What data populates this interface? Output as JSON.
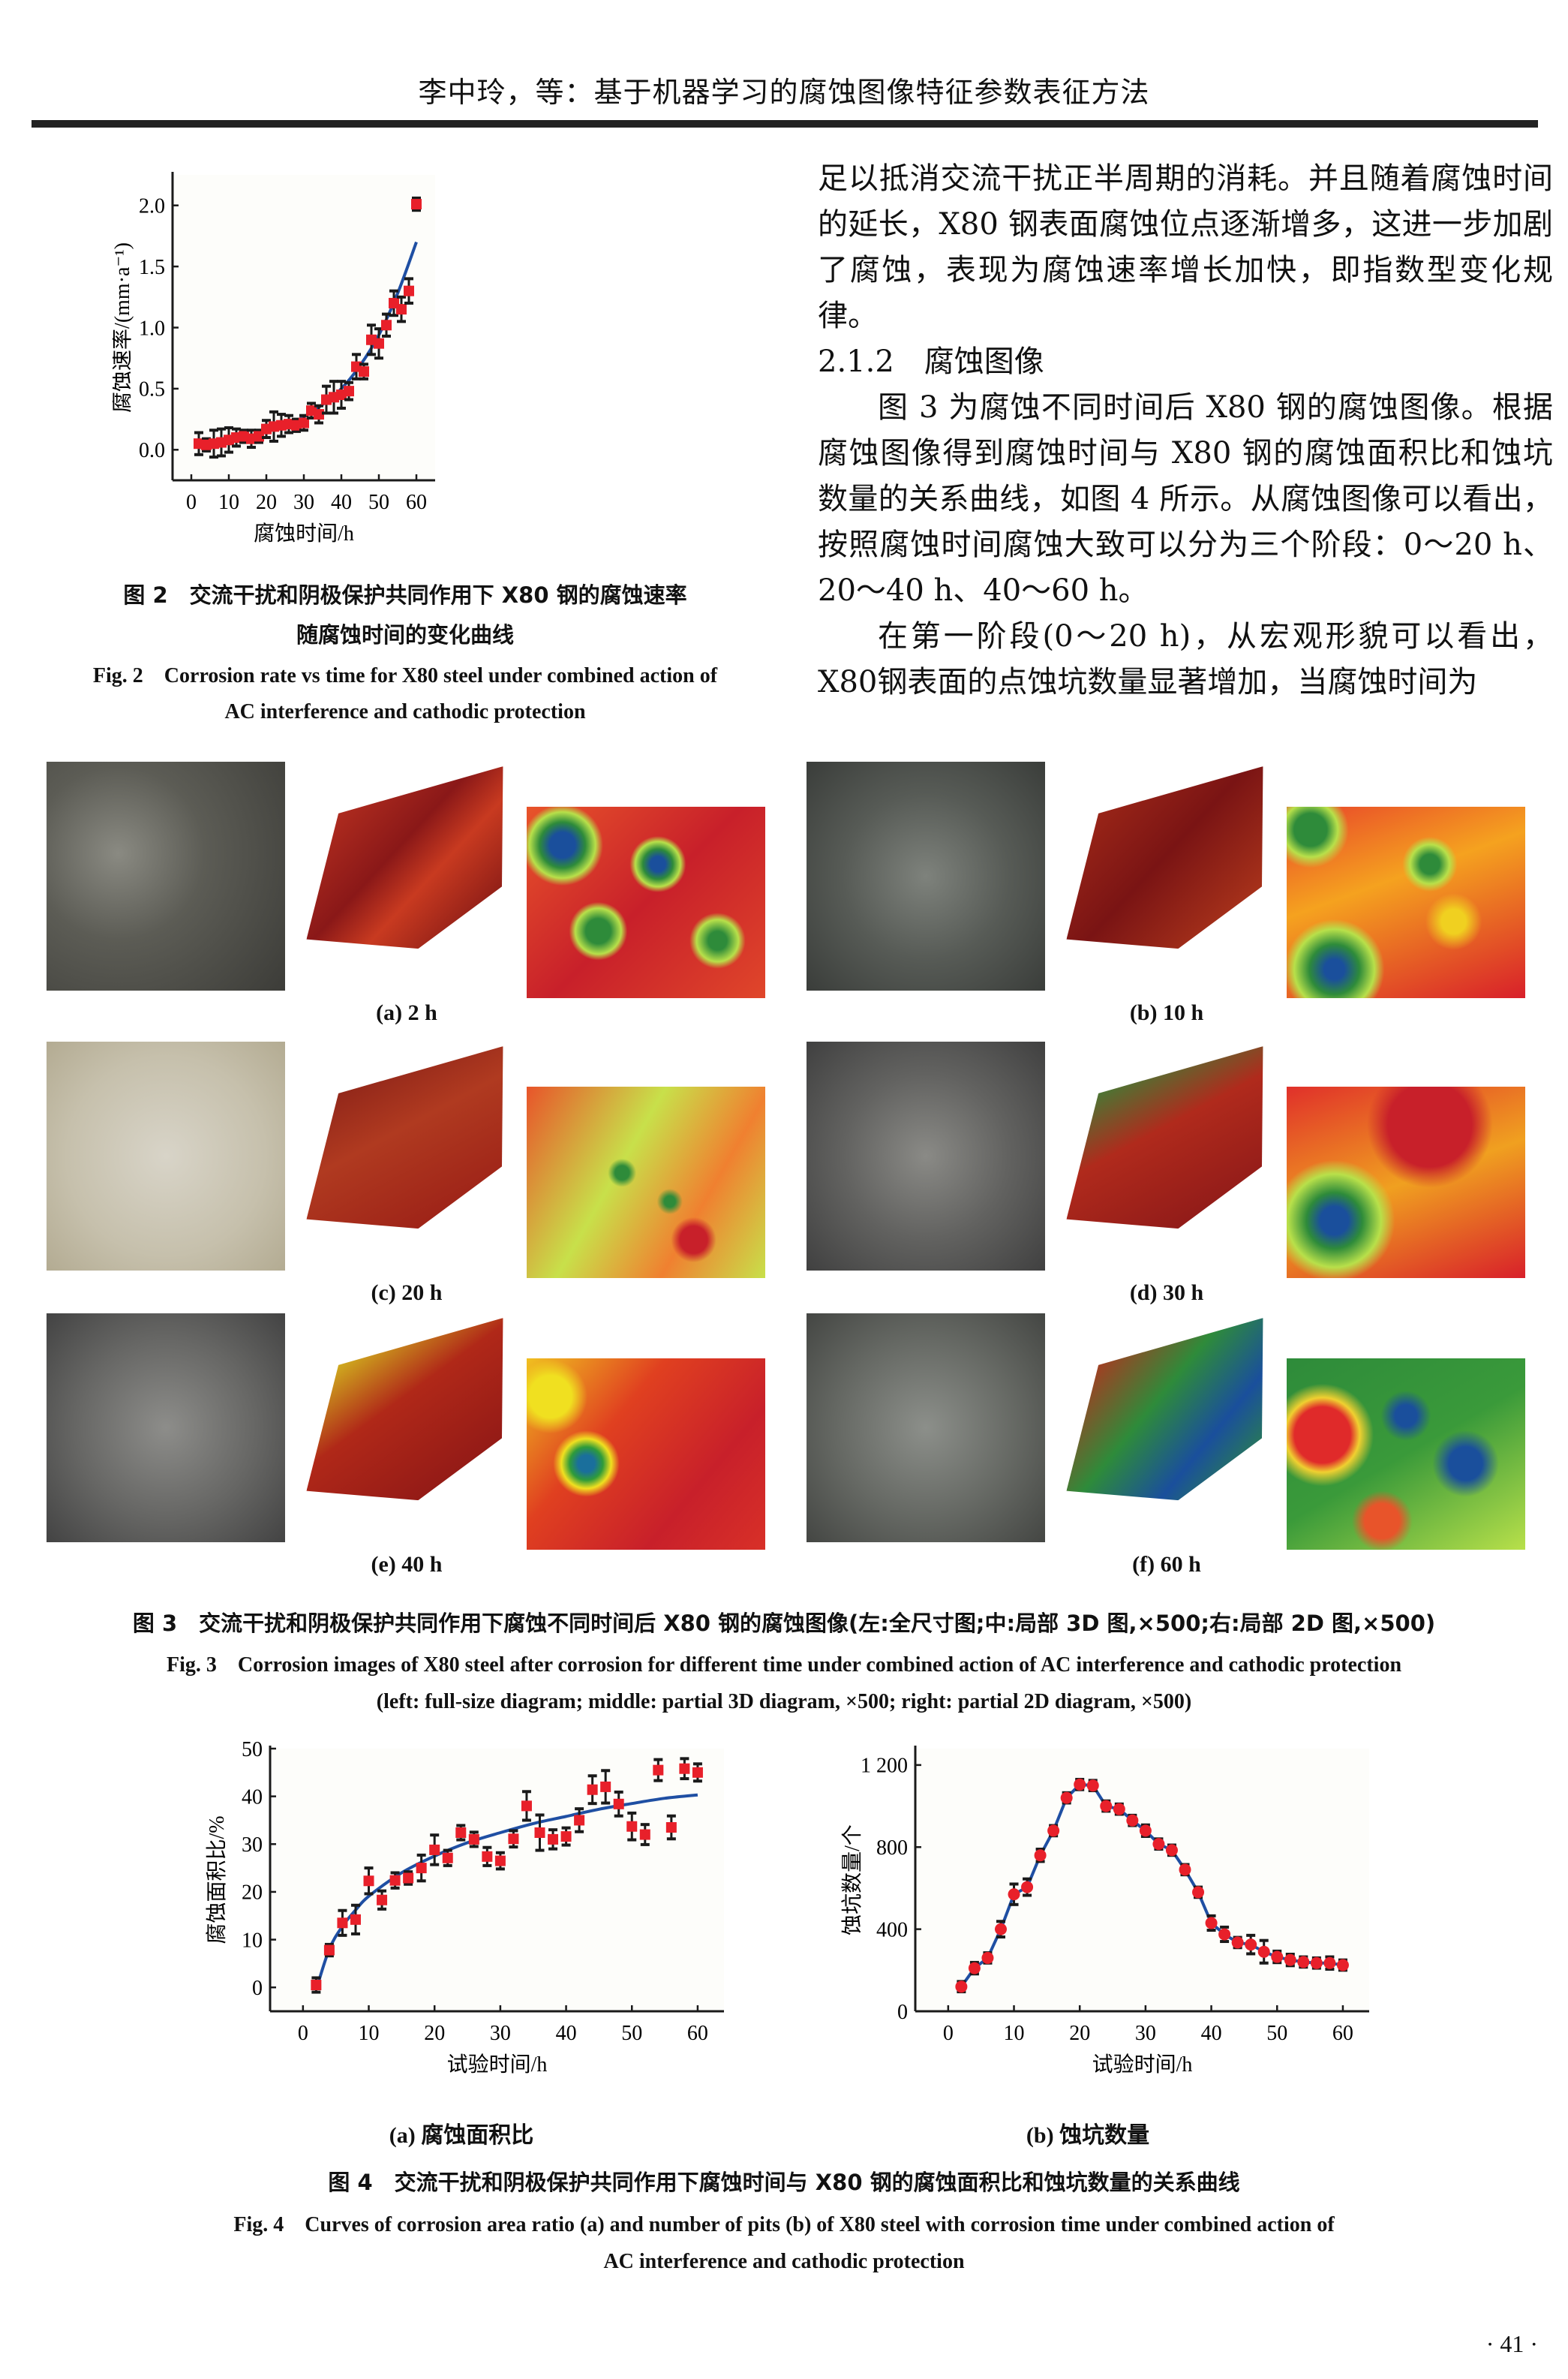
{
  "header": {
    "running_title": "李中玲，等：基于机器学习的腐蚀图像特征参数表征方法"
  },
  "body_text": {
    "paragraph1": "足以抵消交流干扰正半周期的消耗。并且随着腐蚀时间的延长，X80 钢表面腐蚀位点逐渐增多，这进一步加剧了腐蚀，表现为腐蚀速率增长加快，即指数型变化规律。",
    "section_heading": "2.1.2　腐蚀图像",
    "paragraph2": "图 3 为腐蚀不同时间后 X80 钢的腐蚀图像。根据腐蚀图像得到腐蚀时间与 X80 钢的腐蚀面积比和蚀坑数量的关系曲线，如图 4 所示。从腐蚀图像可以看出，按照腐蚀时间腐蚀大致可以分为三个阶段：0～20 h、20～40 h、40～60 h。",
    "paragraph3": "在第一阶段(0～20 h)，从宏观形貌可以看出，X80钢表面的点蚀坑数量显著增加，当腐蚀时间为"
  },
  "fig2": {
    "caption_cn_line1": "图 2　交流干扰和阴极保护共同作用下 X80 钢的腐蚀速率",
    "caption_cn_line2": "随腐蚀时间的变化曲线",
    "caption_en_line1": "Fig. 2　Corrosion rate vs time for X80 steel under combined action of",
    "caption_en_line2": "AC interference and cathodic protection"
  },
  "fig3": {
    "panels": [
      {
        "label": "(a) 2 h"
      },
      {
        "label": "(b) 10 h"
      },
      {
        "label": "(c) 20 h"
      },
      {
        "label": "(d) 30 h"
      },
      {
        "label": "(e) 40 h"
      },
      {
        "label": "(f) 60 h"
      }
    ],
    "caption_cn": "图 3　交流干扰和阴极保护共同作用下腐蚀不同时间后 X80 钢的腐蚀图像(左:全尺寸图;中:局部 3D 图,×500;右:局部 2D 图,×500)",
    "caption_en_line1": "Fig. 3　Corrosion images of X80 steel after corrosion for different time under combined action of AC interference and cathodic protection",
    "caption_en_line2": "(left: full-size diagram; middle: partial 3D diagram, ×500; right: partial 2D diagram, ×500)"
  },
  "fig4": {
    "caption_cn": "图 4　交流干扰和阴极保护共同作用下腐蚀时间与 X80 钢的腐蚀面积比和蚀坑数量的关系曲线",
    "caption_en_line1": "Fig. 4　Curves of corrosion area ratio (a) and number of pits (b) of X80 steel with corrosion time under combined action of",
    "caption_en_line2": "AC interference and cathodic protection",
    "sub_a": "(a) 腐蚀面积比",
    "sub_b": "(b) 蚀坑数量"
  },
  "page_number": "· 41 ·",
  "colors": {
    "marker": "#e8202a",
    "errorbar": "#1a1a1a",
    "fit": "#1f4fa3",
    "axis": "#1a1a1a"
  },
  "chart_data": [
    {
      "id": "fig2",
      "type": "scatter",
      "title": "",
      "xlabel": "腐蚀时间/h",
      "ylabel": "腐蚀速率/(mm·a⁻¹)",
      "xlim": [
        -5,
        65
      ],
      "ylim": [
        -0.25,
        2.25
      ],
      "xticks": [
        0,
        10,
        20,
        30,
        40,
        50,
        60
      ],
      "yticks": [
        0.0,
        0.5,
        1.0,
        1.5,
        2.0
      ],
      "ytick_labels": [
        "0.0",
        "0.5",
        "1.0",
        "1.5",
        "2.0"
      ],
      "grid": false,
      "series": [
        {
          "name": "measured",
          "marker": "square",
          "x": [
            2,
            4,
            6,
            8,
            10,
            12,
            14,
            16,
            18,
            20,
            22,
            24,
            26,
            28,
            30,
            32,
            34,
            36,
            38,
            40,
            42,
            44,
            46,
            48,
            50,
            52,
            54,
            56,
            58,
            60
          ],
          "y": [
            0.05,
            0.04,
            0.05,
            0.06,
            0.08,
            0.1,
            0.11,
            0.09,
            0.11,
            0.17,
            0.19,
            0.2,
            0.21,
            0.2,
            0.22,
            0.32,
            0.29,
            0.41,
            0.43,
            0.45,
            0.48,
            0.68,
            0.64,
            0.9,
            0.87,
            1.02,
            1.2,
            1.15,
            1.3,
            2.01
          ],
          "err": [
            0.09,
            0.05,
            0.11,
            0.11,
            0.1,
            0.07,
            0.05,
            0.07,
            0.05,
            0.07,
            0.12,
            0.09,
            0.07,
            0.05,
            0.06,
            0.06,
            0.07,
            0.11,
            0.13,
            0.11,
            0.07,
            0.1,
            0.06,
            0.12,
            0.12,
            0.09,
            0.1,
            0.1,
            0.1,
            0.05
          ]
        },
        {
          "name": "exponential fit",
          "type": "line",
          "curve": "exponential",
          "x": [
            2,
            5,
            10,
            15,
            20,
            25,
            30,
            35,
            40,
            45,
            50,
            55,
            60
          ],
          "y": [
            0.05,
            0.06,
            0.08,
            0.11,
            0.15,
            0.2,
            0.27,
            0.37,
            0.5,
            0.69,
            0.94,
            1.28,
            1.7
          ]
        }
      ]
    },
    {
      "id": "fig4a",
      "type": "scatter",
      "title": "(a) 腐蚀面积比",
      "xlabel": "试验时间/h",
      "ylabel": "腐蚀面积比/%",
      "xlim": [
        -5,
        64
      ],
      "ylim": [
        -5,
        50
      ],
      "xticks": [
        0,
        10,
        20,
        30,
        40,
        50,
        60
      ],
      "yticks": [
        0,
        10,
        20,
        30,
        40,
        50
      ],
      "grid": false,
      "series": [
        {
          "name": "measured",
          "marker": "square",
          "x": [
            2,
            4,
            6,
            8,
            10,
            12,
            14,
            16,
            18,
            20,
            22,
            24,
            26,
            28,
            30,
            32,
            34,
            36,
            38,
            40,
            42,
            44,
            46,
            48,
            50,
            52,
            54,
            56,
            58,
            60
          ],
          "y": [
            0.5,
            7.8,
            13.5,
            14.2,
            22.3,
            18.3,
            22.4,
            22.9,
            25.0,
            28.8,
            27.1,
            32.4,
            31.0,
            27.4,
            26.5,
            31.1,
            38.0,
            32.4,
            31.0,
            31.6,
            35.0,
            41.4,
            42.0,
            38.4,
            33.7,
            32.0,
            45.5,
            33.5,
            45.8,
            45.0
          ],
          "err": [
            1.5,
            1.2,
            2.6,
            3.0,
            2.7,
            1.9,
            1.6,
            1.3,
            2.7,
            3.1,
            1.6,
            1.5,
            1.5,
            1.9,
            1.7,
            1.7,
            3.0,
            3.7,
            2.0,
            1.8,
            2.4,
            2.9,
            3.4,
            2.5,
            2.8,
            2.1,
            2.2,
            2.4,
            2.1,
            1.8
          ]
        },
        {
          "name": "logarithmic fit",
          "type": "line",
          "curve": "logarithmic",
          "x": [
            2,
            4,
            6,
            8,
            10,
            15,
            20,
            25,
            30,
            35,
            40,
            45,
            50,
            55,
            60
          ],
          "y": [
            -0.5,
            8.0,
            12.8,
            16.2,
            19.1,
            24.0,
            27.5,
            30.3,
            32.4,
            34.3,
            35.8,
            37.3,
            38.5,
            39.6,
            40.3
          ]
        }
      ]
    },
    {
      "id": "fig4b",
      "type": "line",
      "title": "(b) 蚀坑数量",
      "xlabel": "试验时间/h",
      "ylabel": "蚀坑数量/个",
      "xlim": [
        -5,
        64
      ],
      "ylim": [
        0,
        1280
      ],
      "xticks": [
        0,
        10,
        20,
        30,
        40,
        50,
        60
      ],
      "yticks": [
        0,
        400,
        800,
        1200
      ],
      "ytick_labels": [
        "0",
        "400",
        "800",
        "1 200"
      ],
      "grid": false,
      "series": [
        {
          "name": "pit count",
          "marker": "circle",
          "x": [
            2,
            4,
            6,
            8,
            10,
            12,
            14,
            16,
            18,
            20,
            22,
            24,
            26,
            28,
            30,
            32,
            34,
            36,
            38,
            40,
            42,
            44,
            46,
            48,
            50,
            52,
            54,
            56,
            58,
            60
          ],
          "y": [
            120,
            210,
            260,
            400,
            570,
            605,
            760,
            880,
            1040,
            1105,
            1100,
            1000,
            985,
            930,
            880,
            815,
            785,
            690,
            580,
            430,
            375,
            335,
            325,
            290,
            265,
            250,
            240,
            235,
            235,
            225
          ],
          "err": [
            25,
            28,
            25,
            38,
            50,
            40,
            30,
            25,
            25,
            25,
            25,
            25,
            25,
            25,
            28,
            25,
            25,
            25,
            25,
            35,
            35,
            25,
            45,
            55,
            28,
            28,
            25,
            25,
            30,
            25
          ]
        }
      ]
    }
  ]
}
